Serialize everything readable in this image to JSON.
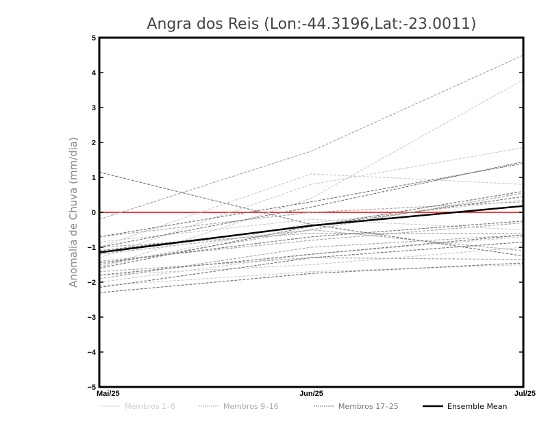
{
  "chart_data": {
    "type": "line",
    "title": "Angra dos Reis (Lon:-44.3196,Lat:-23.0011)",
    "xlabel": "",
    "ylabel": "Anomalia de Chuva (mm/dia)",
    "categories": [
      "Mai/25",
      "Jun/25",
      "Jul/25"
    ],
    "ylim": [
      -5,
      5
    ],
    "yticks": [
      5,
      4,
      3,
      2,
      1,
      0,
      -1,
      -2,
      -3,
      -4,
      -5
    ],
    "ytick_labels": [
      "5",
      "4",
      "3",
      "2",
      "1",
      "0",
      "−1",
      "−2",
      "−3",
      "−4",
      "−5"
    ],
    "grid": false,
    "legend_position": "bottom",
    "zero_line_color": "#f04040",
    "groups": [
      {
        "name": "Membros 1–8",
        "color": "#cccccc",
        "series": [
          [
            -1.6,
            0.4,
            3.8
          ],
          [
            -1.0,
            1.1,
            0.8
          ],
          [
            -1.8,
            -1.5,
            -1.0
          ],
          [
            -2.0,
            -1.2,
            -0.7
          ],
          [
            -1.3,
            0.8,
            1.85
          ],
          [
            -1.55,
            -0.3,
            0.35
          ],
          [
            -0.85,
            -0.2,
            -0.5
          ],
          [
            -2.1,
            -1.7,
            -1.5
          ]
        ]
      },
      {
        "name": "Membros 9–16",
        "color": "#a8a8a8",
        "series": [
          [
            -0.2,
            1.75,
            4.5
          ],
          [
            -1.4,
            -0.8,
            -0.3
          ],
          [
            -1.2,
            -0.5,
            0.55
          ],
          [
            -1.7,
            -1.3,
            -1.35
          ],
          [
            -1.0,
            -0.6,
            -0.6
          ],
          [
            -1.9,
            -1.0,
            -0.65
          ],
          [
            -0.7,
            0.0,
            0.3
          ],
          [
            -1.5,
            -0.5,
            -1.1
          ]
        ]
      },
      {
        "name": "Membros 17–25",
        "color": "#777777",
        "series": [
          [
            1.15,
            -0.35,
            -1.25
          ],
          [
            -0.7,
            0.3,
            1.4
          ],
          [
            -1.45,
            -0.7,
            -0.25
          ],
          [
            -2.3,
            -1.75,
            -1.45
          ],
          [
            -1.6,
            -0.4,
            0.45
          ],
          [
            -1.0,
            0.15,
            1.45
          ],
          [
            -1.8,
            -1.2,
            -0.65
          ],
          [
            -2.15,
            -1.3,
            -0.85
          ],
          [
            -1.1,
            -0.4,
            0.6
          ]
        ]
      }
    ],
    "ensemble_mean": {
      "name": "Ensemble Mean",
      "color": "#000000",
      "values": [
        -1.15,
        -0.38,
        0.18
      ]
    }
  }
}
